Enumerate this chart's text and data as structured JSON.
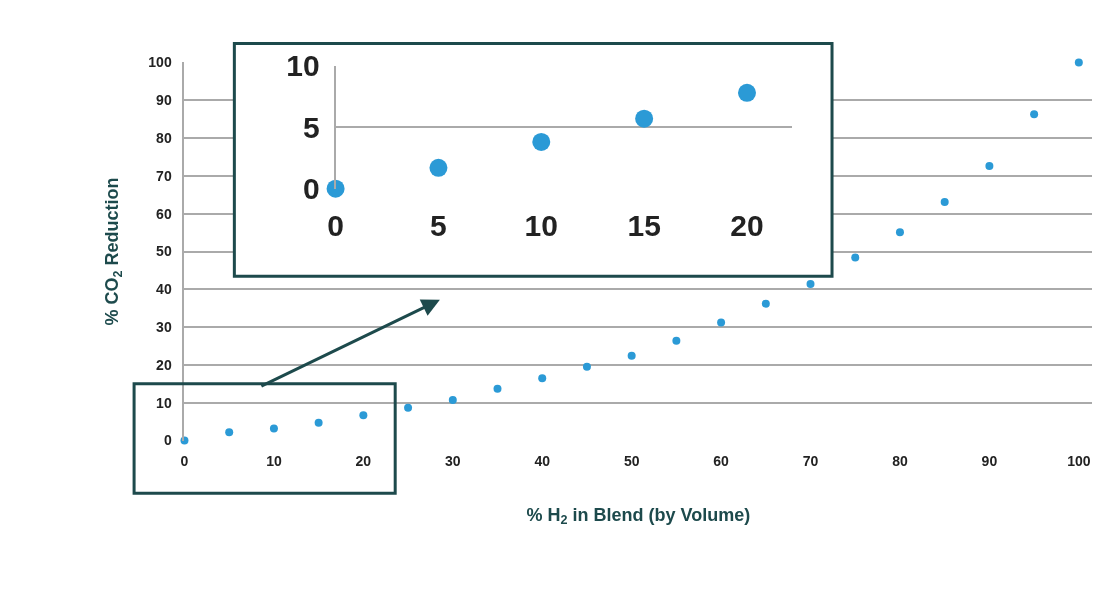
{
  "chart_data": [
    {
      "type": "scatter",
      "xlabel": "% H$_{2}$ in Blend (by Volume)",
      "ylabel": "% CO$_{2}$ Reduction",
      "x": [
        0,
        5,
        10,
        15,
        20,
        25,
        30,
        35,
        40,
        45,
        50,
        55,
        60,
        65,
        70,
        75,
        80,
        85,
        90,
        95,
        100
      ],
      "series": [
        {
          "color": "#2b9ad6",
          "values": [
            0,
            2.2,
            3.2,
            4.7,
            6.7,
            8.7,
            10.7,
            13.7,
            16.5,
            19.5,
            22.4,
            26.4,
            31.2,
            36.2,
            41.4,
            48.4,
            55.1,
            63.1,
            72.6,
            86.3,
            100
          ]
        }
      ],
      "xlim": [
        0,
        101.5
      ],
      "ylim": [
        0,
        100
      ],
      "xticks": [
        0,
        10,
        20,
        30,
        40,
        50,
        60,
        70,
        80,
        90,
        100
      ],
      "yticks": [
        0,
        10,
        20,
        30,
        40,
        50,
        60,
        70,
        80,
        90,
        100
      ],
      "grid": "y",
      "marker": "circle"
    },
    {
      "type": "scatter",
      "x": [
        0,
        5,
        10,
        15,
        20
      ],
      "series": [
        {
          "color": "#2b9ad6",
          "values": [
            0,
            1.7,
            3.8,
            5.7,
            7.8
          ]
        }
      ],
      "xlim": [
        0,
        22.2
      ],
      "ylim": [
        0,
        10
      ],
      "xticks": [
        0,
        5,
        10,
        15,
        20
      ],
      "yticks": [
        0,
        5,
        10
      ],
      "grid": "y",
      "marker": "circle"
    }
  ]
}
